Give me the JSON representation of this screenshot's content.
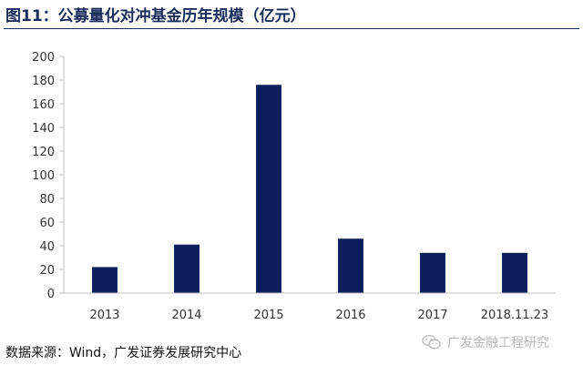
{
  "figure": {
    "title": "图11：公募量化对冲基金历年规模（亿元）",
    "source": "数据来源：Wind，广发证券发展研究中心",
    "watermark": "广发金融工程研究",
    "watermark_icon": "wechat-icon"
  },
  "chart_data": {
    "type": "bar",
    "categories": [
      "2013",
      "2014",
      "2015",
      "2016",
      "2017",
      "2018.11.23"
    ],
    "values": [
      22,
      41,
      176,
      46,
      34,
      34
    ],
    "title": "",
    "xlabel": "",
    "ylabel": "",
    "ylim": [
      0,
      200
    ],
    "yticks": [
      0,
      20,
      40,
      60,
      80,
      100,
      120,
      140,
      160,
      180,
      200
    ],
    "bar_color": "#0c1f5c",
    "grid": false,
    "legend": "none"
  }
}
